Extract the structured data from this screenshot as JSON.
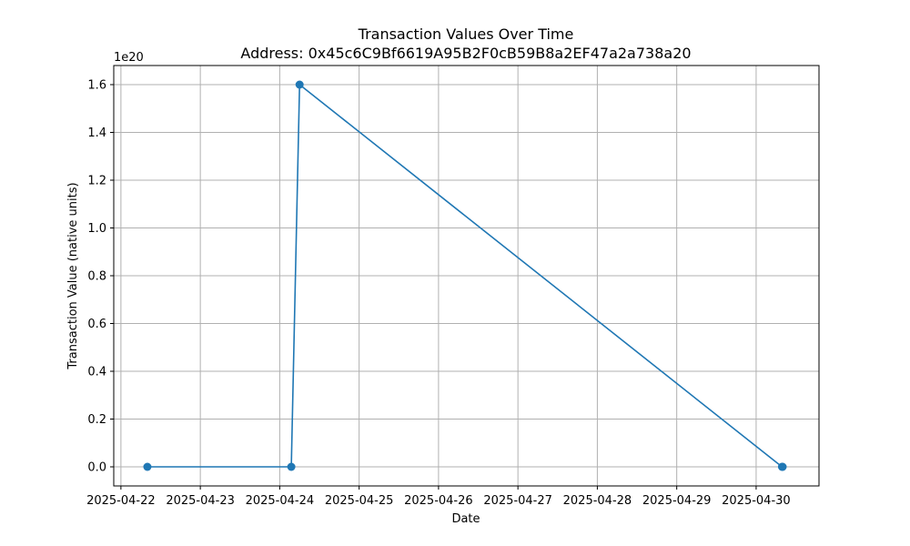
{
  "chart_data": {
    "type": "line",
    "title": "Transaction Values Over Time",
    "subtitle": "Address: 0x45c6C9Bf6619A95B2F0cB59B8a2EF47a2a738a20",
    "xlabel": "Date",
    "ylabel": "Transaction Value (native units)",
    "y_offset_label": "1e20",
    "y_scale": 1e+20,
    "x_ticks": [
      "2025-04-22",
      "2025-04-23",
      "2025-04-24",
      "2025-04-25",
      "2025-04-26",
      "2025-04-27",
      "2025-04-28",
      "2025-04-29",
      "2025-04-30"
    ],
    "y_ticks": [
      "0.0",
      "0.2",
      "0.4",
      "0.6",
      "0.8",
      "1.0",
      "1.2",
      "1.4",
      "1.6"
    ],
    "xlim": [
      "2025-04-21T21:50",
      "2025-04-30T19:00"
    ],
    "ylim": [
      -0.08,
      1.68
    ],
    "grid": true,
    "series": [
      {
        "color": "#1f77b4",
        "marker": "circle",
        "points": [
          {
            "x": "2025-04-22T08:00",
            "y": 0.0
          },
          {
            "x": "2025-04-24T03:30",
            "y": 0.0
          },
          {
            "x": "2025-04-24T06:00",
            "y": 1.6
          },
          {
            "x": "2025-04-30T07:50",
            "y": 0.0
          },
          {
            "x": "2025-04-30T08:00",
            "y": 0.0
          }
        ]
      }
    ]
  }
}
